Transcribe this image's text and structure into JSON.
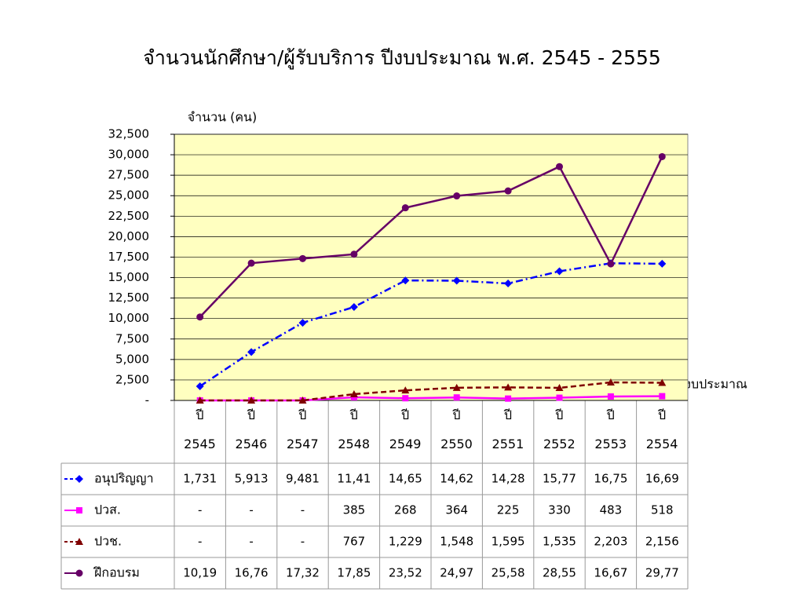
{
  "chart_data": {
    "type": "line",
    "title": "จำนวนนักศึกษา/ผู้รับบริการ ปีงบประมาณ พ.ศ. 2545 - 2555",
    "y_label": "จำนวน (คน)",
    "x_label": "ปีงบประมาณ",
    "categories": [
      "ปี\n2545",
      "ปี\n2546",
      "ปี\n2547",
      "ปี\n2548",
      "ปี\n2549",
      "ปี\n2550",
      "ปี\n2551",
      "ปี\n2552",
      "ปี\n2553",
      "ปี\n2554"
    ],
    "ylim": [
      0,
      32500
    ],
    "yticks": [
      {
        "value": 0,
        "label": "-"
      },
      {
        "value": 2500,
        "label": "2,500"
      },
      {
        "value": 5000,
        "label": "5,000"
      },
      {
        "value": 7500,
        "label": "7,500"
      },
      {
        "value": 10000,
        "label": "10,000"
      },
      {
        "value": 12500,
        "label": "12,500"
      },
      {
        "value": 15000,
        "label": "15,000"
      },
      {
        "value": 17500,
        "label": "17,500"
      },
      {
        "value": 20000,
        "label": "20,000"
      },
      {
        "value": 22500,
        "label": "22,500"
      },
      {
        "value": 25000,
        "label": "25,000"
      },
      {
        "value": 27500,
        "label": "27,500"
      },
      {
        "value": 30000,
        "label": "30,000"
      },
      {
        "value": 32500,
        "label": "32,500"
      }
    ],
    "grid": true,
    "plot_background": "#ffffc0",
    "series": [
      {
        "name": "อนุปริญญา",
        "color": "#0000ff",
        "marker": "diamond",
        "dash": "dashdot",
        "values": [
          1731,
          5913,
          9481,
          11410,
          14650,
          14620,
          14280,
          15770,
          16750,
          16690
        ],
        "value_labels": [
          "1,731",
          "5,913",
          "9,481",
          "11,41",
          "14,65",
          "14,62",
          "14,28",
          "15,77",
          "16,75",
          "16,69"
        ]
      },
      {
        "name": "ปวส.",
        "color": "#ff00ff",
        "marker": "square",
        "dash": "solid",
        "values": [
          0,
          0,
          0,
          385,
          268,
          364,
          225,
          330,
          483,
          518
        ],
        "value_labels": [
          "-",
          "-",
          "-",
          "385",
          "268",
          "364",
          "225",
          "330",
          "483",
          "518"
        ]
      },
      {
        "name": "ปวช.",
        "color": "#800000",
        "marker": "triangle",
        "dash": "dashed",
        "values": [
          0,
          0,
          0,
          767,
          1229,
          1548,
          1595,
          1535,
          2203,
          2156
        ],
        "value_labels": [
          "-",
          "-",
          "-",
          "767",
          "1,229",
          "1,548",
          "1,595",
          "1,535",
          "2,203",
          "2,156"
        ]
      },
      {
        "name": "ฝึกอบรม",
        "color": "#660066",
        "marker": "circle",
        "dash": "solid",
        "values": [
          10190,
          16760,
          17320,
          17850,
          23520,
          24970,
          25580,
          28550,
          16670,
          29770
        ],
        "value_labels": [
          "10,19",
          "16,76",
          "17,32",
          "17,85",
          "23,52",
          "24,97",
          "25,58",
          "28,55",
          "16,67",
          "29,77"
        ]
      }
    ]
  }
}
